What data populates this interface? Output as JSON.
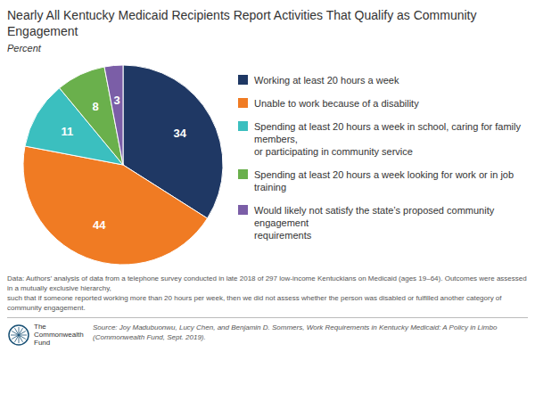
{
  "chart_data": {
    "type": "pie",
    "title": "Nearly All Kentucky Medicaid Recipients Report Activities That Qualify as Community\nEngagement",
    "subtitle": "Percent",
    "categories": [
      "Working at least 20 hours a week",
      "Unable to work because of a disability",
      "Spending at least 20 hours a week in school, caring for family members,\nor participating in community service",
      "Spending at least 20 hours a week looking for work or in job training",
      "Would likely not satisfy the state’s proposed community engagement\nrequirements"
    ],
    "values": [
      34,
      44,
      11,
      8,
      3
    ],
    "colors": [
      "#1F3864",
      "#F07B23",
      "#3BBFBF",
      "#6AB04C",
      "#7B5EA7"
    ],
    "data_labels": true,
    "legend": "right",
    "annotations": [
      "Data: Authors’ analysis of data from a telephone survey conducted in late 2018 of 297 low-income Kentuckians on Medicaid (ages 19–64). Outcomes were assessed in a mutually exclusive hierarchy,\nsuch that if someone reported working more than 20 hours per week, then we did not assess whether the person was disabled or fulfilled another category of community engagement.",
      "Source: Joy Madubuonwu, Lucy Chen, and Benjamin D. Sommers, Work Requirements in Kentucky Medicaid: A Policy in Limbo\n(Commonwealth Fund, Sept. 2019).",
      "The",
      "Commonwealth",
      "Fund"
    ]
  }
}
